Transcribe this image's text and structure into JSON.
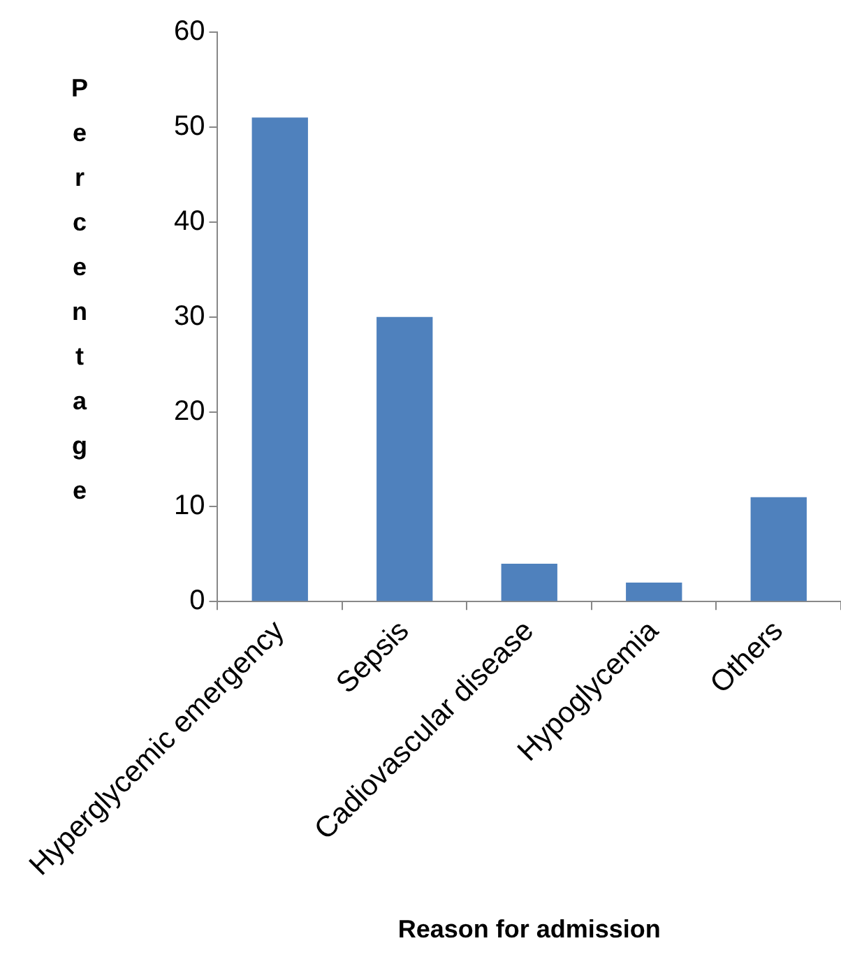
{
  "chart_data": {
    "type": "bar",
    "xlabel": "Reason for admission",
    "ylabel": "Percentage",
    "categories": [
      "Hyperglycemic emergency",
      "Sepsis",
      "Cadiovascular disease",
      "Hypoglycemia",
      "Others"
    ],
    "values": [
      51,
      30,
      4,
      2,
      11
    ],
    "color": "#4f81bd",
    "ylim": [
      0,
      60
    ],
    "yticks": [
      0,
      10,
      20,
      30,
      40,
      50,
      60
    ],
    "grid": false,
    "legend": false
  }
}
